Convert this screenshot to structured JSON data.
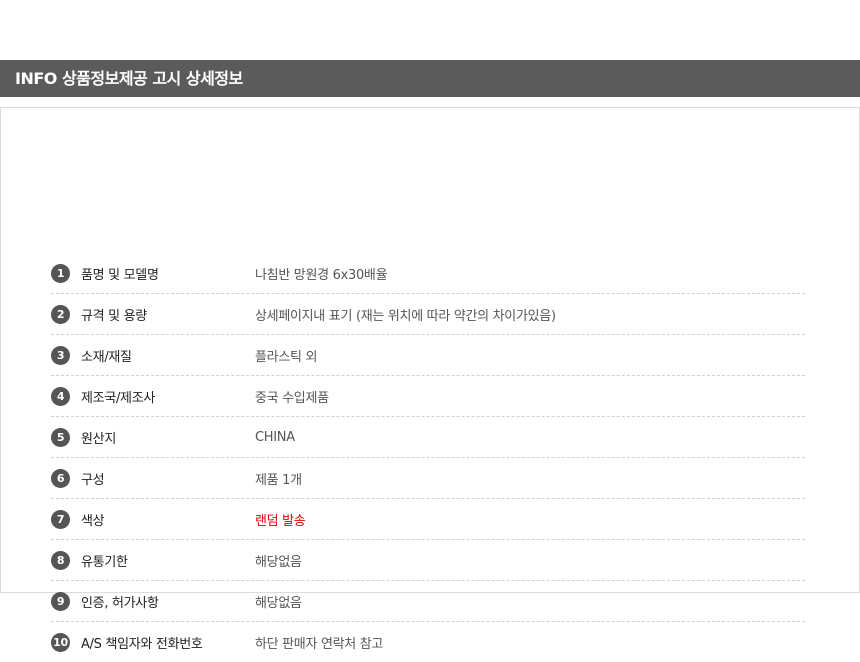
{
  "header": {
    "title": "INFO 상품정보제공 고시 상세정보"
  },
  "colors": {
    "header_bg": "#5b5b5b",
    "highlight": "#e60000"
  },
  "rows": [
    {
      "num": "1",
      "label": "품명 및 모델명",
      "value": "나침반 망원경 6x30배율"
    },
    {
      "num": "2",
      "label": "규격 및 용량",
      "value": "상세페이지내 표기 (재는 위치에 따라 약간의 차이가있음)"
    },
    {
      "num": "3",
      "label": "소재/재질",
      "value": "플라스틱 외"
    },
    {
      "num": "4",
      "label": "제조국/제조사",
      "value": "중국 수입제품"
    },
    {
      "num": "5",
      "label": "원산지",
      "value": "CHINA"
    },
    {
      "num": "6",
      "label": "구성",
      "value": "제품 1개"
    },
    {
      "num": "7",
      "label": "색상",
      "value": "랜덤 발송"
    },
    {
      "num": "8",
      "label": "유통기한",
      "value": "해당없음"
    },
    {
      "num": "9",
      "label": "인증, 허가사항",
      "value": "해당없음"
    },
    {
      "num": "10",
      "label": "A/S 책임자와 전화번호",
      "value": "하단 판매자 연락처 참고"
    }
  ]
}
